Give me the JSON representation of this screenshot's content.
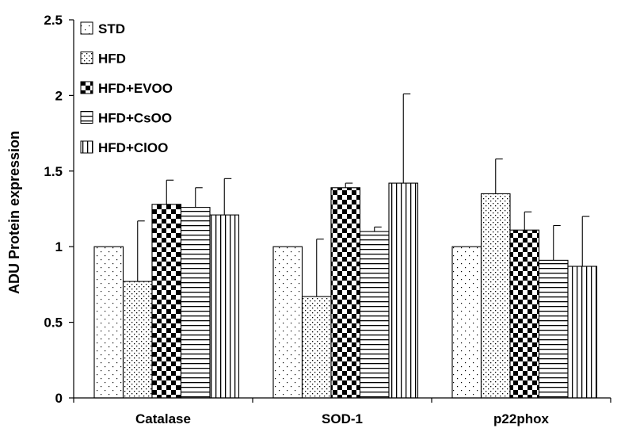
{
  "chart_data": {
    "type": "bar",
    "categories": [
      "Catalase",
      "SOD-1",
      "p22phox"
    ],
    "ylabel": "ADU Protein expression",
    "xlabel": "",
    "ylim": [
      0,
      2.5
    ],
    "yticks": [
      "0",
      "0.5",
      "1",
      "1.5",
      "2",
      "2.5"
    ],
    "grid": false,
    "legend_position": "top-left",
    "series": [
      {
        "name": "STD",
        "pattern": "sparse-dots",
        "values": [
          1.0,
          1.0,
          1.0
        ],
        "errors": [
          0,
          0,
          0
        ]
      },
      {
        "name": "HFD",
        "pattern": "dense-dots",
        "values": [
          0.77,
          0.67,
          1.35
        ],
        "errors": [
          0.4,
          0.38,
          0.23
        ]
      },
      {
        "name": "HFD+EVOO",
        "pattern": "checker",
        "values": [
          1.28,
          1.39,
          1.11
        ],
        "errors": [
          0.16,
          0.03,
          0.12
        ]
      },
      {
        "name": "HFD+CsOO",
        "pattern": "horizontal-lines",
        "values": [
          1.26,
          1.1,
          0.91
        ],
        "errors": [
          0.13,
          0.03,
          0.23
        ]
      },
      {
        "name": "HFD+ClOO",
        "pattern": "vertical-lines",
        "values": [
          1.21,
          1.42,
          0.87
        ],
        "errors": [
          0.24,
          0.59,
          0.33
        ]
      }
    ]
  }
}
